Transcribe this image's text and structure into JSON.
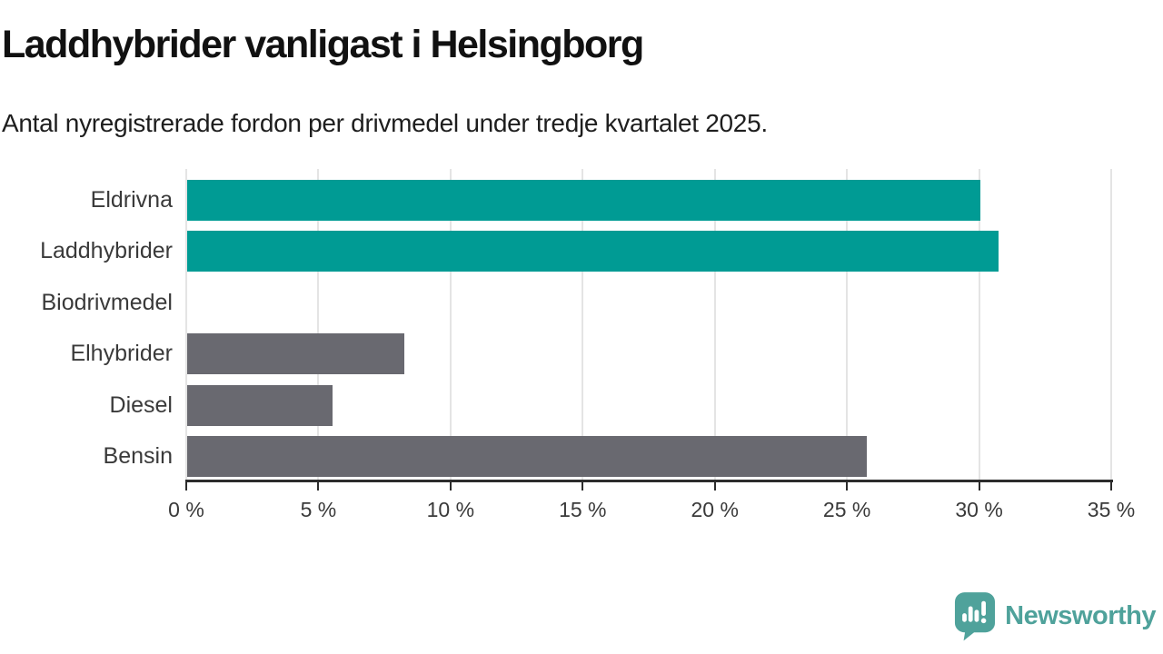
{
  "header": {
    "title": "Laddhybrider vanligast i Helsingborg",
    "subtitle": "Antal nyregistrerade fordon per drivmedel under tredje kvartalet 2025."
  },
  "chart_data": {
    "type": "bar",
    "orientation": "horizontal",
    "title": "Laddhybrider vanligast i Helsingborg",
    "subtitle": "Antal nyregistrerade fordon per drivmedel under tredje kvartalet 2025.",
    "categories": [
      "Eldrivna",
      "Laddhybrider",
      "Biodrivmedel",
      "Elhybrider",
      "Diesel",
      "Bensin"
    ],
    "values": [
      30.0,
      30.7,
      0,
      8.2,
      5.5,
      25.7
    ],
    "unit": "%",
    "bar_colors": [
      "#009B94",
      "#009B94",
      "#696970",
      "#696970",
      "#696970",
      "#696970"
    ],
    "highlight_color": "#009B94",
    "default_color": "#696970",
    "xlabel": "",
    "ylabel": "",
    "xlim": [
      0,
      35
    ],
    "x_ticks": [
      0,
      5,
      10,
      15,
      20,
      25,
      30,
      35
    ],
    "x_tick_labels": [
      "0 %",
      "5 %",
      "10 %",
      "15 %",
      "20 %",
      "25 %",
      "30 %",
      "35 %"
    ],
    "grid": true,
    "gridline_color": "#e4e4e4",
    "axis_color": "#2c2c2c",
    "label_color": "#3a3a3a",
    "legend": false
  },
  "branding": {
    "logo_text": "Newsworthy",
    "logo_color": "#4FA29B",
    "logo_glyph_color": "#ffffff",
    "logo_icon": "speech-bubble-bar-chart-icon"
  }
}
